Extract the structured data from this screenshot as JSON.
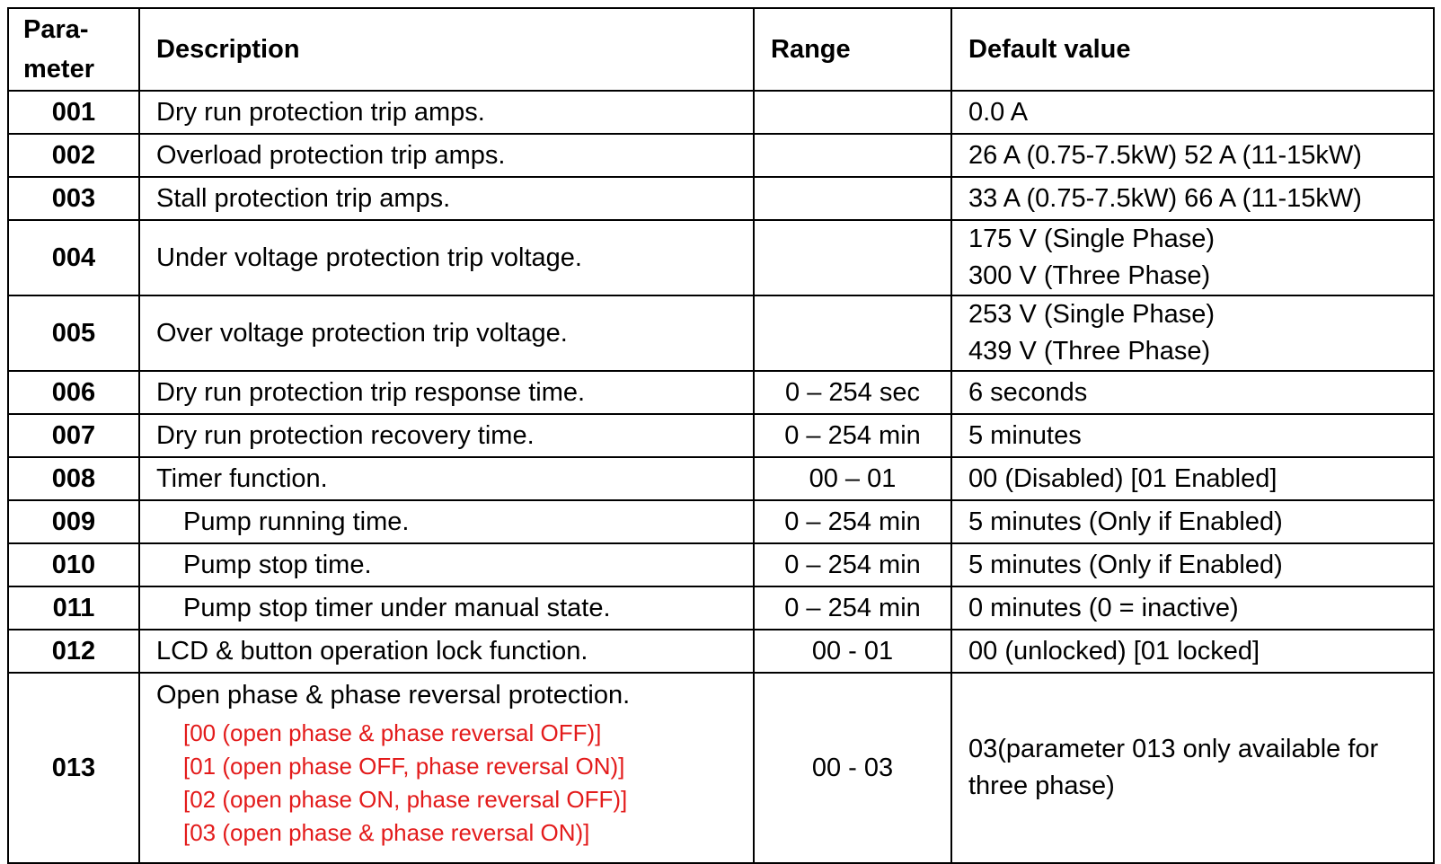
{
  "table": {
    "headers": [
      "Para-\nmeter",
      "Description",
      "Range",
      "Default value"
    ],
    "header_param_lines": [
      "Para-",
      "meter"
    ],
    "rows": [
      {
        "param": "001",
        "description": "Dry run protection trip amps.",
        "range": "",
        "default": [
          "0.0 A"
        ]
      },
      {
        "param": "002",
        "description": "Overload protection trip amps.",
        "range": "",
        "default": [
          "26 A (0.75-7.5kW) 52 A (11-15kW)"
        ]
      },
      {
        "param": "003",
        "description": "Stall protection trip amps.",
        "range": "",
        "default": [
          "33 A (0.75-7.5kW) 66 A (11-15kW)"
        ]
      },
      {
        "param": "004",
        "description": "Under voltage protection trip voltage.",
        "range": "",
        "default": [
          "175 V (Single Phase)",
          "300 V (Three Phase)"
        ]
      },
      {
        "param": "005",
        "description": "Over voltage protection trip voltage.",
        "range": "",
        "default": [
          "253 V (Single Phase)",
          "439 V (Three Phase)"
        ]
      },
      {
        "param": "006",
        "description": "Dry run protection trip response time.",
        "range": "0 – 254 sec",
        "default": [
          "6 seconds"
        ]
      },
      {
        "param": "007",
        "description": "Dry run protection recovery time.",
        "range": "0 – 254 min",
        "default": [
          "5 minutes"
        ]
      },
      {
        "param": "008",
        "description": "Timer function.",
        "range": "00 – 01",
        "default": [
          "00 (Disabled) [01 Enabled]"
        ]
      },
      {
        "param": "009",
        "description": "Pump running time.",
        "range": "0 – 254 min",
        "default": [
          "5 minutes (Only if Enabled)"
        ]
      },
      {
        "param": "010",
        "description": "Pump stop time.",
        "range": "0 – 254 min",
        "default": [
          "5 minutes (Only if Enabled)"
        ]
      },
      {
        "param": "011",
        "description": "Pump stop timer under manual state.",
        "range": "0 – 254 min",
        "default": [
          "0 minutes (0 = inactive)"
        ]
      },
      {
        "param": "012",
        "description": "LCD & button operation lock function.",
        "range": "00 - 01",
        "default": [
          "00 (unlocked) [01 locked]"
        ]
      },
      {
        "param": "013",
        "description": "Open phase & phase reversal protection.",
        "options": [
          "[00 (open phase & phase reversal OFF)]",
          "[01 (open phase OFF, phase reversal ON)]",
          "[02 (open phase ON, phase reversal OFF)]",
          "[03 (open phase & phase reversal ON)]"
        ],
        "range": "00 - 03",
        "default": [
          "03(parameter 013 only available for three phase)"
        ]
      }
    ]
  },
  "colors": {
    "option_text": "#e31b1b",
    "border": "#000000"
  }
}
